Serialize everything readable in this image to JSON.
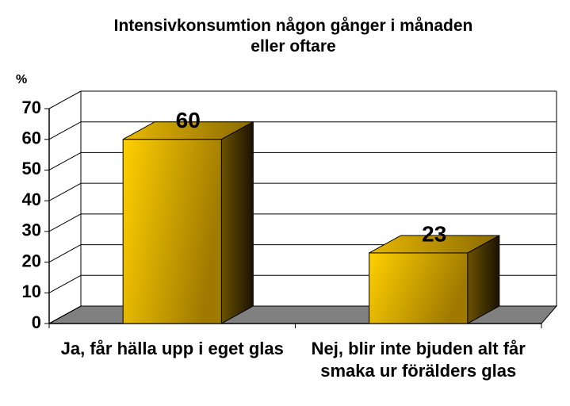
{
  "chart_data": {
    "type": "bar3d",
    "title": "Intensivkonsumtion någon gånger i månaden eller oftare",
    "y_label": "%",
    "categories": [
      "Ja, får hälla upp i eget glas",
      "Nej, blir inte bjuden alt får smaka ur förälders glas"
    ],
    "values": [
      60,
      23
    ],
    "color": "#ffcc00",
    "ylim": [
      0,
      70
    ],
    "yticks": [
      0,
      10,
      20,
      30,
      40,
      50,
      60,
      70
    ],
    "grid": true
  }
}
